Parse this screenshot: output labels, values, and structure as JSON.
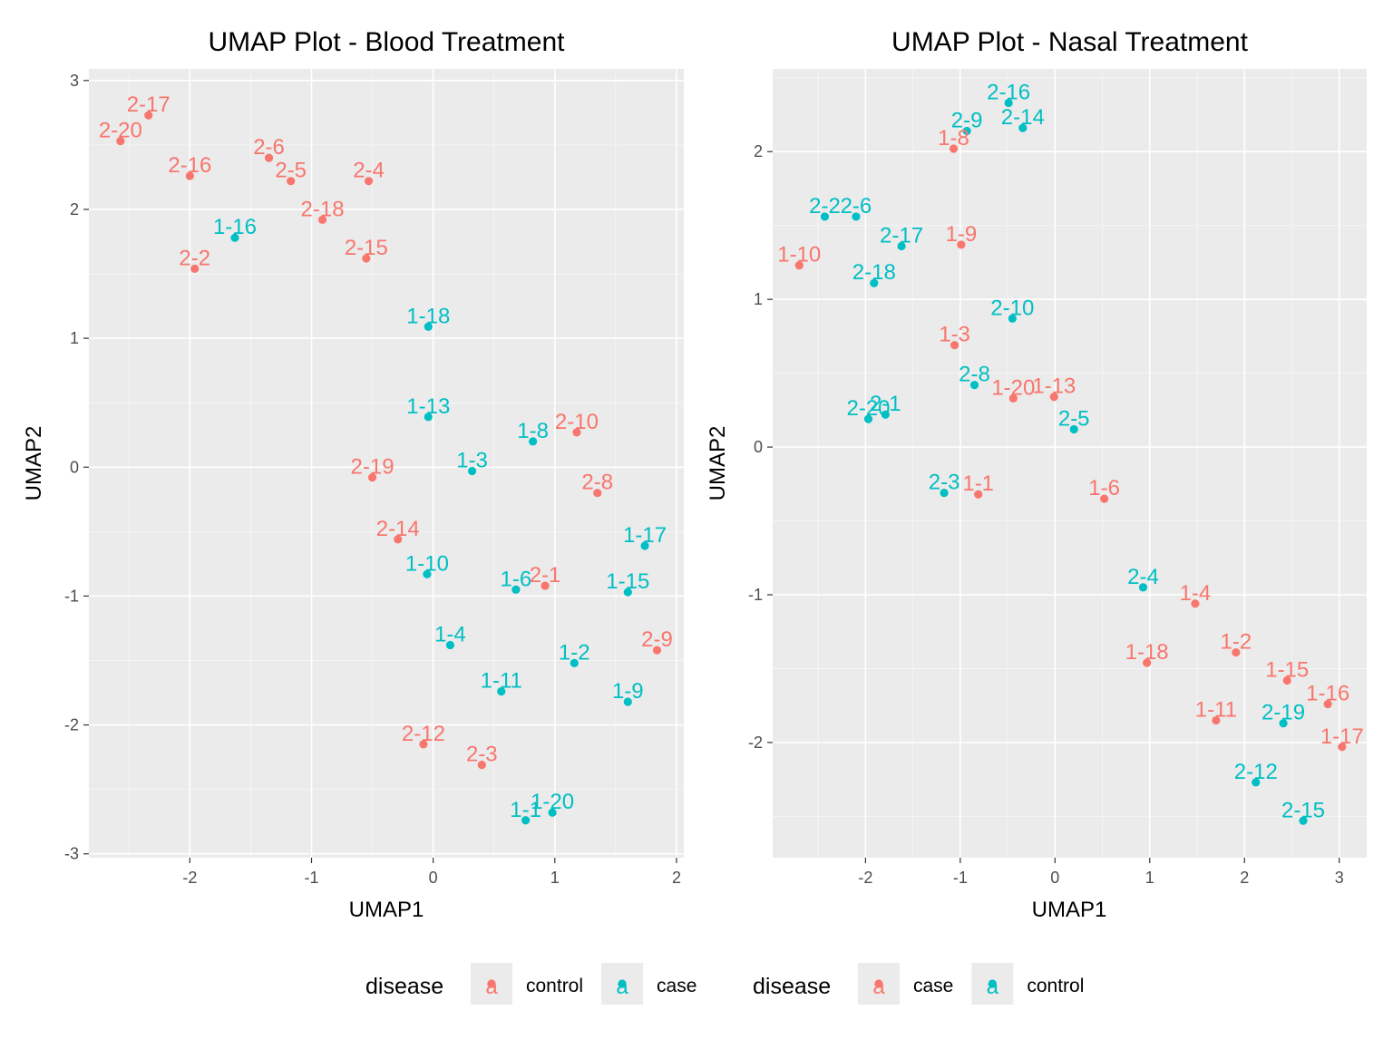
{
  "colors": {
    "red": "#f8766d",
    "teal": "#00bfc4"
  },
  "chart_data": [
    {
      "type": "scatter",
      "title": "UMAP Plot - Blood Treatment",
      "xlabel": "UMAP1",
      "ylabel": "UMAP2",
      "xlim": [
        -2.83,
        2.06
      ],
      "ylim": [
        -3.03,
        3.09
      ],
      "xticks": [
        -2,
        -1,
        0,
        1,
        2
      ],
      "yticks": [
        -3,
        -2,
        -1,
        0,
        1,
        2,
        3
      ],
      "grid": true,
      "legend": {
        "title": "disease",
        "position": "bottom",
        "entries": [
          {
            "label": "control",
            "color": "red"
          },
          {
            "label": "case",
            "color": "teal"
          }
        ]
      },
      "series": [
        {
          "name": "control",
          "color": "red",
          "points": [
            {
              "label": "2-17",
              "x": -2.34,
              "y": 2.73
            },
            {
              "label": "2-20",
              "x": -2.57,
              "y": 2.53
            },
            {
              "label": "2-16",
              "x": -2.0,
              "y": 2.26
            },
            {
              "label": "2-6",
              "x": -1.35,
              "y": 2.4
            },
            {
              "label": "2-5",
              "x": -1.17,
              "y": 2.22
            },
            {
              "label": "2-4",
              "x": -0.53,
              "y": 2.22
            },
            {
              "label": "2-18",
              "x": -0.91,
              "y": 1.92
            },
            {
              "label": "2-2",
              "x": -1.96,
              "y": 1.54
            },
            {
              "label": "2-15",
              "x": -0.55,
              "y": 1.62
            },
            {
              "label": "2-10",
              "x": 1.18,
              "y": 0.27
            },
            {
              "label": "2-19",
              "x": -0.5,
              "y": -0.08
            },
            {
              "label": "2-8",
              "x": 1.35,
              "y": -0.2
            },
            {
              "label": "2-14",
              "x": -0.29,
              "y": -0.56
            },
            {
              "label": "2-1",
              "x": 0.92,
              "y": -0.92
            },
            {
              "label": "2-9",
              "x": 1.84,
              "y": -1.42
            },
            {
              "label": "2-12",
              "x": -0.08,
              "y": -2.15
            },
            {
              "label": "2-3",
              "x": 0.4,
              "y": -2.31
            }
          ]
        },
        {
          "name": "case",
          "color": "teal",
          "points": [
            {
              "label": "1-16",
              "x": -1.63,
              "y": 1.78
            },
            {
              "label": "1-18",
              "x": -0.04,
              "y": 1.09
            },
            {
              "label": "1-13",
              "x": -0.04,
              "y": 0.39
            },
            {
              "label": "1-8",
              "x": 0.82,
              "y": 0.2
            },
            {
              "label": "1-3",
              "x": 0.32,
              "y": -0.03
            },
            {
              "label": "1-17",
              "x": 1.74,
              "y": -0.61
            },
            {
              "label": "1-10",
              "x": -0.05,
              "y": -0.83
            },
            {
              "label": "1-6",
              "x": 0.68,
              "y": -0.95
            },
            {
              "label": "1-15",
              "x": 1.6,
              "y": -0.97
            },
            {
              "label": "1-4",
              "x": 0.14,
              "y": -1.38
            },
            {
              "label": "1-2",
              "x": 1.16,
              "y": -1.52
            },
            {
              "label": "1-11",
              "x": 0.56,
              "y": -1.74
            },
            {
              "label": "1-9",
              "x": 1.6,
              "y": -1.82
            },
            {
              "label": "1-20",
              "x": 0.98,
              "y": -2.68
            },
            {
              "label": "1-1",
              "x": 0.76,
              "y": -2.74
            }
          ]
        }
      ]
    },
    {
      "type": "scatter",
      "title": "UMAP Plot - Nasal Treatment",
      "xlabel": "UMAP1",
      "ylabel": "UMAP2",
      "xlim": [
        -2.98,
        3.29
      ],
      "ylim": [
        -2.78,
        2.56
      ],
      "xticks": [
        -2,
        -1,
        0,
        1,
        2,
        3
      ],
      "yticks": [
        -2,
        -1,
        0,
        1,
        2
      ],
      "grid": true,
      "legend": {
        "title": "disease",
        "position": "bottom",
        "entries": [
          {
            "label": "case",
            "color": "red"
          },
          {
            "label": "control",
            "color": "teal"
          }
        ]
      },
      "series": [
        {
          "name": "case",
          "color": "red",
          "points": [
            {
              "label": "1-8",
              "x": -1.07,
              "y": 2.02
            },
            {
              "label": "1-10",
              "x": -2.7,
              "y": 1.23
            },
            {
              "label": "1-9",
              "x": -0.99,
              "y": 1.37
            },
            {
              "label": "1-3",
              "x": -1.06,
              "y": 0.69
            },
            {
              "label": "1-20",
              "x": -0.44,
              "y": 0.33
            },
            {
              "label": "1-13",
              "x": -0.01,
              "y": 0.34
            },
            {
              "label": "1-1",
              "x": -0.81,
              "y": -0.32
            },
            {
              "label": "1-6",
              "x": 0.52,
              "y": -0.35
            },
            {
              "label": "1-4",
              "x": 1.48,
              "y": -1.06
            },
            {
              "label": "1-18",
              "x": 0.97,
              "y": -1.46
            },
            {
              "label": "1-2",
              "x": 1.91,
              "y": -1.39
            },
            {
              "label": "1-15",
              "x": 2.45,
              "y": -1.58
            },
            {
              "label": "1-16",
              "x": 2.88,
              "y": -1.74
            },
            {
              "label": "1-11",
              "x": 1.7,
              "y": -1.85
            },
            {
              "label": "1-17",
              "x": 3.03,
              "y": -2.03
            }
          ]
        },
        {
          "name": "control",
          "color": "teal",
          "points": [
            {
              "label": "2-16",
              "x": -0.49,
              "y": 2.33
            },
            {
              "label": "2-9",
              "x": -0.93,
              "y": 2.14
            },
            {
              "label": "2-14",
              "x": -0.34,
              "y": 2.16
            },
            {
              "label": "2-2",
              "x": -2.43,
              "y": 1.56
            },
            {
              "label": "2-6",
              "x": -2.1,
              "y": 1.56
            },
            {
              "label": "2-17",
              "x": -1.62,
              "y": 1.36
            },
            {
              "label": "2-18",
              "x": -1.91,
              "y": 1.11
            },
            {
              "label": "2-10",
              "x": -0.45,
              "y": 0.87
            },
            {
              "label": "2-8",
              "x": -0.85,
              "y": 0.42
            },
            {
              "label": "2-20",
              "x": -1.97,
              "y": 0.19
            },
            {
              "label": "2-1",
              "x": -1.79,
              "y": 0.22
            },
            {
              "label": "2-5",
              "x": 0.2,
              "y": 0.12
            },
            {
              "label": "2-3",
              "x": -1.17,
              "y": -0.31
            },
            {
              "label": "2-4",
              "x": 0.93,
              "y": -0.95
            },
            {
              "label": "2-19",
              "x": 2.41,
              "y": -1.87
            },
            {
              "label": "2-12",
              "x": 2.12,
              "y": -2.27
            },
            {
              "label": "2-15",
              "x": 2.62,
              "y": -2.53
            }
          ]
        }
      ]
    }
  ]
}
